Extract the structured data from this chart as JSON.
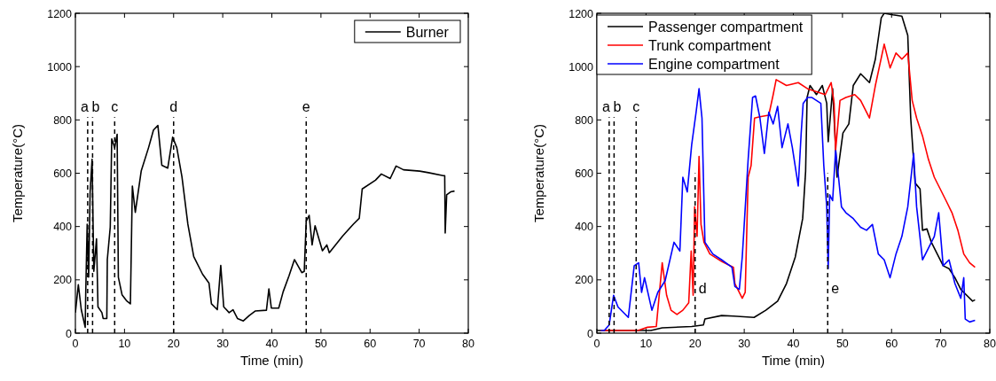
{
  "chart_data": [
    {
      "type": "line",
      "xlabel": "Time (min)",
      "ylabel": "Temperature(°C)",
      "xlim": [
        0,
        80
      ],
      "ylim": [
        0,
        1200
      ],
      "xticks": [
        0,
        10,
        20,
        30,
        40,
        50,
        60,
        70,
        80
      ],
      "yticks": [
        0,
        200,
        400,
        600,
        800,
        1000,
        1200
      ],
      "legend": "top right",
      "grid": false,
      "series": [
        {
          "name": "Burner",
          "color": "#000000",
          "x": [
            0,
            0.6,
            1.2,
            2.0,
            2.1,
            2.4,
            2.7,
            3.0,
            3.4,
            3.75,
            4.3,
            4.6,
            5.4,
            5.65,
            6.4,
            6.5,
            7.1,
            7.4,
            8.0,
            8.5,
            8.75,
            9.5,
            10.4,
            11.2,
            11.6,
            12.2,
            13.4,
            14.9,
            15.9,
            16.8,
            17.6,
            18.8,
            19.8,
            20.65,
            21.7,
            22.9,
            24.1,
            25.9,
            27.2,
            27.7,
            28.9,
            29.6,
            30.2,
            31.3,
            32.1,
            33.0,
            34.2,
            35.4,
            36.6,
            38.9,
            39.4,
            39.9,
            41.4,
            42.3,
            43.5,
            44.6,
            46.1,
            46.6,
            47.0,
            47.6,
            48.2,
            48.8,
            50.3,
            51.2,
            51.7,
            54.4,
            56.6,
            57.8,
            58.4,
            61.1,
            62.3,
            64.1,
            65.3,
            66.8,
            70.1,
            71.9,
            74.9,
            75.2,
            75.3,
            75.6,
            76.4,
            77.2
          ],
          "values": [
            77,
            182,
            88,
            22,
            144,
            409,
            210,
            530,
            652,
            232,
            354,
            99,
            77,
            55,
            55,
            276,
            398,
            729,
            696,
            746,
            210,
            144,
            122,
            110,
            552,
            453,
            608,
            696,
            762,
            779,
            630,
            619,
            735,
            696,
            586,
            409,
            287,
            221,
            188,
            110,
            88,
            254,
            99,
            77,
            88,
            55,
            46,
            66,
            83,
            86,
            166,
            94,
            94,
            155,
            215,
            276,
            227,
            232,
            420,
            442,
            331,
            403,
            309,
            331,
            302,
            364,
            409,
            431,
            541,
            574,
            597,
            580,
            627,
            613,
            608,
            602,
            591,
            591,
            376,
            519,
            530,
            533
          ]
        }
      ],
      "ref_lines": [
        {
          "axis": "x",
          "value": 2.5,
          "label": "a",
          "line_style": "dashed"
        },
        {
          "axis": "x",
          "value": 3.5,
          "label": "b",
          "line_style": "dashed"
        },
        {
          "axis": "x",
          "value": 8,
          "label": "c",
          "line_style": "dashed"
        },
        {
          "axis": "x",
          "value": 20,
          "label": "d",
          "line_style": "dashed"
        },
        {
          "axis": "x",
          "value": 47,
          "label": "e",
          "line_style": "dashed"
        }
      ]
    },
    {
      "type": "line",
      "xlabel": "Time (min)",
      "ylabel": "Temperature(°C)",
      "xlim": [
        0,
        80
      ],
      "ylim": [
        0,
        1200
      ],
      "xticks": [
        0,
        10,
        20,
        30,
        40,
        50,
        60,
        70,
        80
      ],
      "yticks": [
        0,
        200,
        400,
        600,
        800,
        1000,
        1200
      ],
      "legend": "top left",
      "grid": false,
      "series": [
        {
          "name": "Passenger compartment",
          "color": "#000000",
          "x": [
            0,
            11,
            13.3,
            19.3,
            21.7,
            22.0,
            25.4,
            27.8,
            32.0,
            34.4,
            36.8,
            38.6,
            40.4,
            41.9,
            42.5,
            42.8,
            43.4,
            44.7,
            45.9,
            46.8,
            47.1,
            48.0,
            48.9,
            50.1,
            51.3,
            52.2,
            53.7,
            55.5,
            56.7,
            57.9,
            58.5,
            60.3,
            62.1,
            63.3,
            63.9,
            64.8,
            65.8,
            66.3,
            67.2,
            68.1,
            69.3,
            70.5,
            71.7,
            72.9,
            74.1,
            75.3,
            76.5,
            77.0
          ],
          "values": [
            10,
            10,
            20,
            25,
            31,
            53,
            66,
            64,
            59,
            86,
            120,
            186,
            286,
            430,
            607,
            884,
            929,
            895,
            929,
            862,
            718,
            917,
            585,
            751,
            785,
            929,
            973,
            940,
            1028,
            1183,
            1200,
            1194,
            1189,
            1117,
            807,
            563,
            541,
            386,
            391,
            341,
            297,
            253,
            242,
            208,
            164,
            142,
            120,
            125
          ]
        },
        {
          "name": "Trunk compartment",
          "color": "#ff0000",
          "x": [
            0.8,
            8,
            8.5,
            10.3,
            12.1,
            13.3,
            14.2,
            15.1,
            16.3,
            17.5,
            18.7,
            19.2,
            19.6,
            19.9,
            20.4,
            20.8,
            21.2,
            21.8,
            23.0,
            25.4,
            27.8,
            28.1,
            29.6,
            30.2,
            30.8,
            31.4,
            32.1,
            33.2,
            35.0,
            35.9,
            36.5,
            38.6,
            41.0,
            42.9,
            44.7,
            46.5,
            47.7,
            48.3,
            48.6,
            49.5,
            50.7,
            52.5,
            53.7,
            55.5,
            56.7,
            58.5,
            59.7,
            60.9,
            62.1,
            63.3,
            64.2,
            65.1,
            66.3,
            67.5,
            68.7,
            69.9,
            71.1,
            72.3,
            73.5,
            74.7,
            75.9,
            77.0
          ],
          "values": [
            10,
            10,
            11,
            22,
            25,
            264,
            142,
            86,
            70,
            86,
            114,
            308,
            142,
            474,
            363,
            663,
            408,
            341,
            297,
            269,
            247,
            186,
            131,
            153,
            585,
            629,
            807,
            812,
            818,
            895,
            951,
            929,
            940,
            917,
            906,
            895,
            940,
            862,
            685,
            873,
            884,
            895,
            873,
            807,
            929,
            1084,
            995,
            1051,
            1028,
            1051,
            873,
            807,
            740,
            652,
            585,
            541,
            497,
            452,
            386,
            297,
            264,
            247
          ]
        },
        {
          "name": "Engine compartment",
          "color": "#0000ff",
          "x": [
            0.8,
            1.5,
            2.5,
            3.4,
            4.3,
            6.4,
            7.6,
            8.5,
            9.1,
            9.7,
            11.2,
            12.4,
            13.9,
            15.7,
            16.9,
            17.5,
            18.4,
            19.3,
            20.2,
            20.8,
            21.4,
            22.0,
            23.6,
            25.4,
            27.5,
            28.1,
            29.0,
            29.6,
            30.8,
            31.7,
            32.3,
            33.2,
            34.1,
            35.0,
            35.9,
            36.8,
            37.7,
            38.9,
            39.8,
            41.0,
            41.6,
            42.0,
            42.9,
            43.8,
            44.7,
            45.6,
            46.2,
            46.8,
            47.1,
            47.4,
            48.0,
            48.6,
            49.2,
            49.8,
            50.7,
            52.2,
            53.7,
            54.9,
            56.1,
            57.3,
            58.5,
            59.7,
            60.9,
            62.1,
            63.3,
            64.5,
            65.1,
            66.3,
            67.5,
            68.7,
            69.6,
            70.5,
            71.7,
            72.9,
            74.1,
            74.7,
            75.0,
            75.9,
            77.0
          ],
          "values": [
            10,
            10,
            31,
            142,
            98,
            59,
            253,
            264,
            153,
            208,
            86,
            153,
            197,
            341,
            308,
            585,
            530,
            707,
            829,
            917,
            807,
            341,
            297,
            275,
            247,
            175,
            164,
            286,
            652,
            884,
            890,
            807,
            674,
            829,
            785,
            851,
            696,
            785,
            696,
            552,
            751,
            862,
            884,
            884,
            873,
            862,
            629,
            474,
            242,
            519,
            497,
            685,
            585,
            474,
            452,
            430,
            397,
            386,
            408,
            297,
            275,
            208,
            297,
            363,
            474,
            674,
            474,
            275,
            319,
            363,
            452,
            253,
            275,
            186,
            131,
            208,
            53,
            42,
            48
          ]
        }
      ],
      "ref_lines": [
        {
          "axis": "x",
          "value": 2.5,
          "label": "a",
          "line_style": "dashed"
        },
        {
          "axis": "x",
          "value": 3.5,
          "label": "b",
          "line_style": "dashed"
        },
        {
          "axis": "x",
          "value": 8,
          "label": "c",
          "line_style": "dashed"
        },
        {
          "axis": "x",
          "value": 20,
          "label": "d",
          "line_style": "dashed"
        },
        {
          "axis": "x",
          "value": 47,
          "label": "e",
          "line_style": "dashed"
        }
      ]
    }
  ]
}
